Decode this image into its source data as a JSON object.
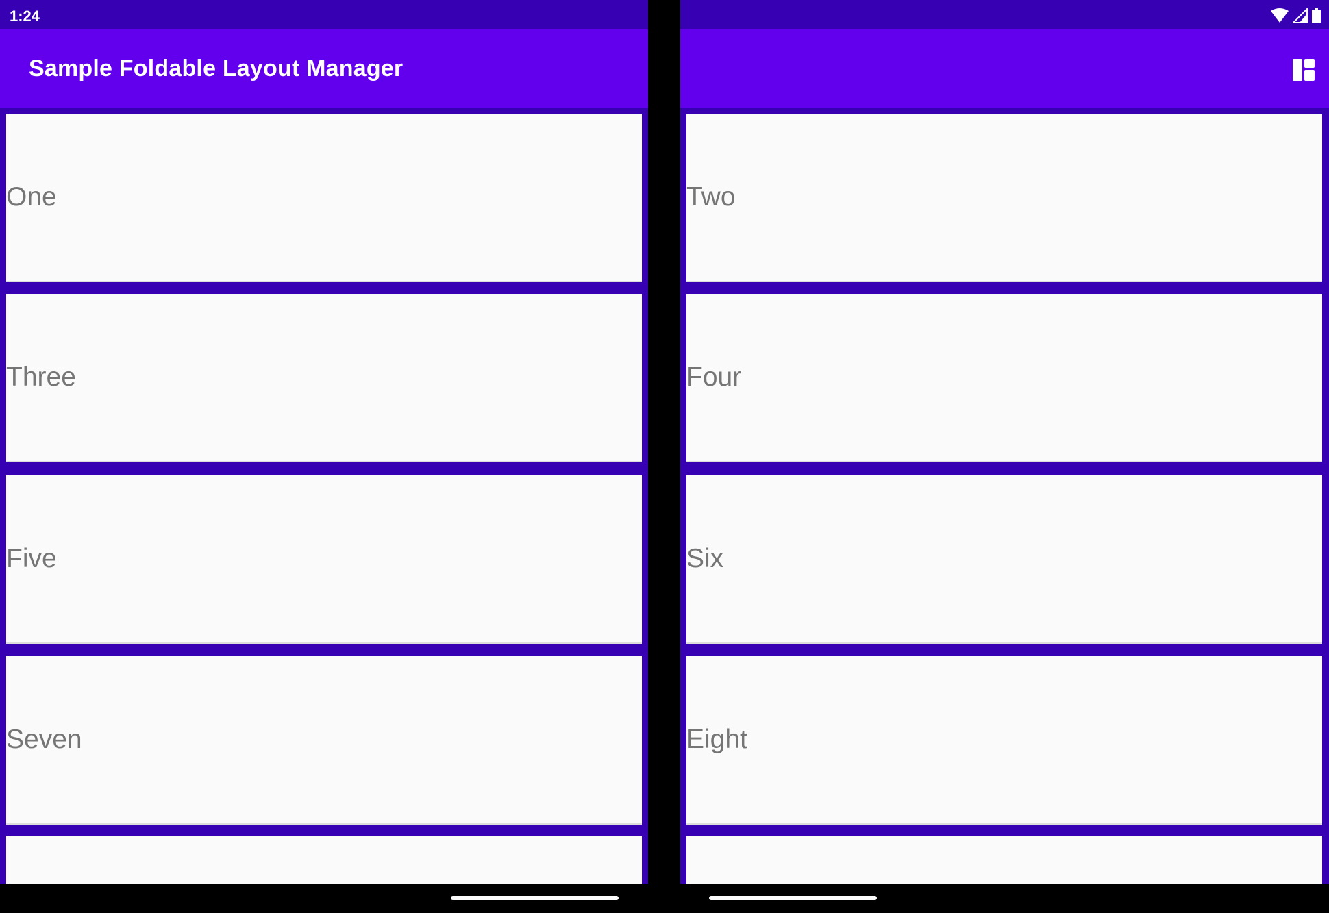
{
  "status_bar": {
    "time": "1:24",
    "icons": [
      "wifi-icon",
      "cellular-signal-icon",
      "battery-icon"
    ]
  },
  "app_bar": {
    "title": "Sample Foldable Layout Manager",
    "action_icon": "dashboard-layout-icon"
  },
  "left_items": [
    "One",
    "Three",
    "Five",
    "Seven",
    ""
  ],
  "right_items": [
    "Two",
    "Four",
    "Six",
    "Eight",
    ""
  ],
  "colors": {
    "primary": "#6200ee",
    "primary_dark": "#3700b3",
    "card": "#fafafa",
    "text": "#757575"
  }
}
